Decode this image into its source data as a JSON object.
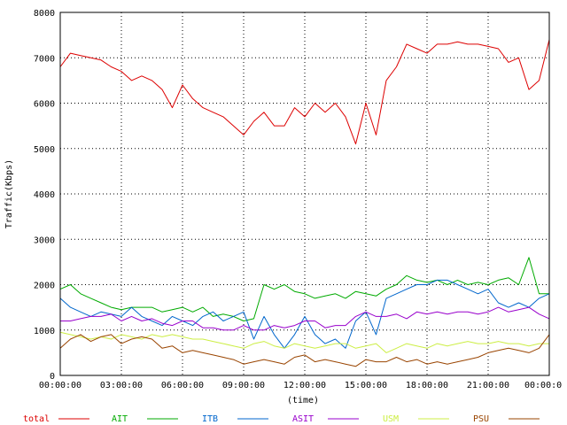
{
  "chart_data": {
    "type": "line",
    "ylabel": "Traffic(Kbps)",
    "xlabel": "(time)",
    "ylim": [
      0,
      8000
    ],
    "y_ticks": [
      "0",
      "1000",
      "2000",
      "3000",
      "4000",
      "5000",
      "6000",
      "7000",
      "8000"
    ],
    "xlim": [
      0,
      24
    ],
    "x_ticks": [
      "00:00:00",
      "03:00:00",
      "06:00:00",
      "09:00:00",
      "12:00:00",
      "15:00:00",
      "18:00:00",
      "21:00:00",
      "00:00:0"
    ],
    "x_unit": "hours",
    "grid": "dotted",
    "legend_placement": "bottom",
    "x": [
      0,
      0.5,
      1,
      1.5,
      2,
      2.5,
      3,
      3.5,
      4,
      4.5,
      5,
      5.5,
      6,
      6.5,
      7,
      7.5,
      8,
      8.5,
      9,
      9.5,
      10,
      10.5,
      11,
      11.5,
      12,
      12.5,
      13,
      13.5,
      14,
      14.5,
      15,
      15.5,
      16,
      16.5,
      17,
      17.5,
      18,
      18.5,
      19,
      19.5,
      20,
      20.5,
      21,
      21.5,
      22,
      22.5,
      23,
      23.5,
      24
    ],
    "series": [
      {
        "name": "total",
        "color": "#dd0000",
        "values": [
          6800,
          7100,
          7050,
          7000,
          6950,
          6800,
          6700,
          6500,
          6600,
          6500,
          6300,
          5900,
          6400,
          6100,
          5900,
          5800,
          5700,
          5500,
          5300,
          5600,
          5800,
          5500,
          5500,
          5900,
          5700,
          6000,
          5800,
          6000,
          5700,
          5100,
          6000,
          5300,
          6500,
          6800,
          7300,
          7200,
          7100,
          7300,
          7300,
          7350,
          7300,
          7300,
          7250,
          7200,
          6900,
          7000,
          6300,
          6500,
          7400
        ]
      },
      {
        "name": "AIT",
        "color": "#00aa00",
        "values": [
          1900,
          2000,
          1800,
          1700,
          1600,
          1500,
          1450,
          1500,
          1500,
          1500,
          1400,
          1450,
          1500,
          1400,
          1500,
          1300,
          1350,
          1300,
          1200,
          1250,
          2000,
          1900,
          2000,
          1850,
          1800,
          1700,
          1750,
          1800,
          1700,
          1850,
          1800,
          1750,
          1900,
          2000,
          2200,
          2100,
          2050,
          2100,
          2000,
          2100,
          2000,
          2050,
          2000,
          2100,
          2150,
          2000,
          2600,
          1800,
          1800
        ]
      },
      {
        "name": "ITB",
        "color": "#0066cc",
        "values": [
          1700,
          1500,
          1400,
          1300,
          1400,
          1350,
          1300,
          1500,
          1300,
          1200,
          1100,
          1300,
          1200,
          1100,
          1300,
          1400,
          1200,
          1300,
          1400,
          800,
          1300,
          900,
          600,
          900,
          1300,
          900,
          700,
          800,
          600,
          1200,
          1400,
          900,
          1700,
          1800,
          1900,
          2000,
          2000,
          2100,
          2100,
          2000,
          1900,
          1800,
          1900,
          1600,
          1500,
          1600,
          1500,
          1700,
          1800
        ]
      },
      {
        "name": "ASIT",
        "color": "#9900cc",
        "values": [
          1200,
          1200,
          1250,
          1300,
          1300,
          1350,
          1200,
          1300,
          1200,
          1250,
          1150,
          1100,
          1200,
          1200,
          1050,
          1050,
          1000,
          1000,
          1100,
          1000,
          1000,
          1100,
          1050,
          1100,
          1200,
          1200,
          1050,
          1100,
          1100,
          1300,
          1400,
          1300,
          1300,
          1350,
          1250,
          1400,
          1350,
          1400,
          1350,
          1400,
          1400,
          1350,
          1400,
          1500,
          1400,
          1450,
          1500,
          1350,
          1250
        ]
      },
      {
        "name": "USM",
        "color": "#ccee44",
        "values": [
          950,
          900,
          850,
          800,
          850,
          800,
          900,
          850,
          800,
          900,
          850,
          900,
          850,
          800,
          800,
          750,
          700,
          650,
          600,
          700,
          750,
          650,
          600,
          700,
          650,
          600,
          650,
          700,
          700,
          600,
          650,
          700,
          500,
          600,
          700,
          650,
          600,
          700,
          650,
          700,
          750,
          700,
          700,
          750,
          700,
          700,
          650,
          700,
          700
        ]
      },
      {
        "name": "PSU",
        "color": "#994400",
        "values": [
          600,
          800,
          900,
          750,
          850,
          900,
          700,
          800,
          850,
          800,
          600,
          650,
          500,
          550,
          500,
          450,
          400,
          350,
          250,
          300,
          350,
          300,
          250,
          400,
          450,
          300,
          350,
          300,
          250,
          200,
          350,
          300,
          300,
          400,
          300,
          350,
          250,
          300,
          250,
          300,
          350,
          400,
          500,
          550,
          600,
          550,
          500,
          600,
          900
        ]
      }
    ]
  }
}
